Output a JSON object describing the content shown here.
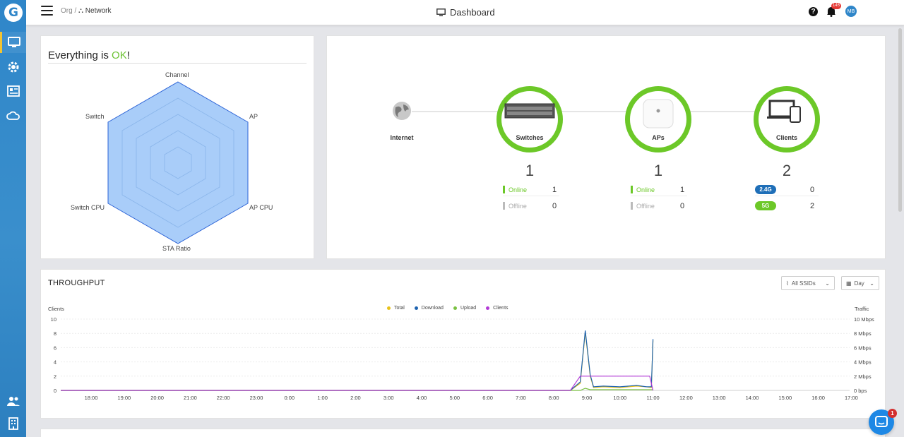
{
  "header": {
    "breadcrumb_org": "Org /",
    "breadcrumb_network": "Network",
    "title": "Dashboard",
    "notifications_count": "145",
    "avatar_initials": "MB"
  },
  "sidebar": {
    "logo": "G",
    "items": [
      {
        "icon": "monitor-icon",
        "active": true
      },
      {
        "icon": "gear-icon"
      },
      {
        "icon": "list-icon"
      },
      {
        "icon": "cloud-icon"
      },
      {
        "icon": "users-icon"
      },
      {
        "icon": "building-icon"
      }
    ]
  },
  "health": {
    "title_prefix": "Everything is ",
    "title_ok": "OK",
    "title_suffix": "!",
    "axes": [
      "Channel",
      "AP",
      "AP CPU",
      "STA Ratio",
      "Switch CPU",
      "Switch"
    ]
  },
  "topology": {
    "internet_label": "Internet",
    "switches": {
      "label": "Switches",
      "count": "1",
      "online_label": "Online",
      "online": "1",
      "offline_label": "Offline",
      "offline": "0"
    },
    "aps": {
      "label": "APs",
      "count": "1",
      "online_label": "Online",
      "online": "1",
      "offline_label": "Offline",
      "offline": "0"
    },
    "clients": {
      "label": "Clients",
      "count": "2",
      "band1_label": "2.4G",
      "band1": "0",
      "band2_label": "5G",
      "band2": "2"
    }
  },
  "throughput": {
    "title": "THROUGHPUT",
    "ssid_filter": "All SSIDs",
    "range_filter": "Day",
    "left_axis_title": "Clients",
    "right_axis_title": "Traffic"
  },
  "chart_data": {
    "type": "line",
    "x": [
      "18:00",
      "19:00",
      "20:00",
      "21:00",
      "22:00",
      "23:00",
      "0:00",
      "1:00",
      "2:00",
      "3:00",
      "4:00",
      "5:00",
      "6:00",
      "7:00",
      "8:00",
      "9:00",
      "10:00",
      "11:00",
      "12:00",
      "13:00",
      "14:00",
      "15:00",
      "16:00",
      "17:00"
    ],
    "y_left_ticks": [
      "0",
      "2",
      "4",
      "6",
      "8",
      "10"
    ],
    "y_right_ticks": [
      "0 bps",
      "2 Mbps",
      "4 Mbps",
      "6 Mbps",
      "8 Mbps",
      "10 Mbps"
    ],
    "ylim_left": [
      0,
      10
    ],
    "ylim_right": [
      0,
      10
    ],
    "xlabel": "",
    "ylabel": "Clients",
    "ylabel_right": "Traffic",
    "legend_position": "top-center",
    "grid": true,
    "series": [
      {
        "name": "Total",
        "color": "#e8c21a",
        "axis": "right",
        "points": [
          [
            0,
            0
          ],
          [
            14.5,
            0
          ],
          [
            14.8,
            1.0
          ],
          [
            14.95,
            8.2
          ],
          [
            15.1,
            2.0
          ],
          [
            15.2,
            0.4
          ],
          [
            15.5,
            0.5
          ],
          [
            16.0,
            0.4
          ],
          [
            16.5,
            0.6
          ],
          [
            16.8,
            0.5
          ],
          [
            16.95,
            0.4
          ],
          [
            17.0,
            7.0
          ]
        ]
      },
      {
        "name": "Download",
        "color": "#1e63b0",
        "axis": "right",
        "points": [
          [
            0,
            0
          ],
          [
            14.5,
            0
          ],
          [
            14.8,
            1.2
          ],
          [
            14.95,
            8.4
          ],
          [
            15.1,
            2.2
          ],
          [
            15.2,
            0.5
          ],
          [
            15.5,
            0.6
          ],
          [
            16.0,
            0.5
          ],
          [
            16.5,
            0.7
          ],
          [
            16.8,
            0.5
          ],
          [
            16.95,
            0.5
          ],
          [
            17.0,
            7.2
          ]
        ]
      },
      {
        "name": "Upload",
        "color": "#7ac142",
        "axis": "right",
        "points": [
          [
            0,
            0
          ],
          [
            14.8,
            0
          ],
          [
            14.95,
            0.3
          ],
          [
            15.1,
            0.1
          ],
          [
            17.0,
            0.1
          ]
        ]
      },
      {
        "name": "Clients",
        "color": "#b23ad6",
        "axis": "left",
        "points": [
          [
            0,
            0
          ],
          [
            14.5,
            0
          ],
          [
            14.8,
            2
          ],
          [
            16.9,
            2
          ],
          [
            17.0,
            0
          ]
        ]
      }
    ]
  }
}
